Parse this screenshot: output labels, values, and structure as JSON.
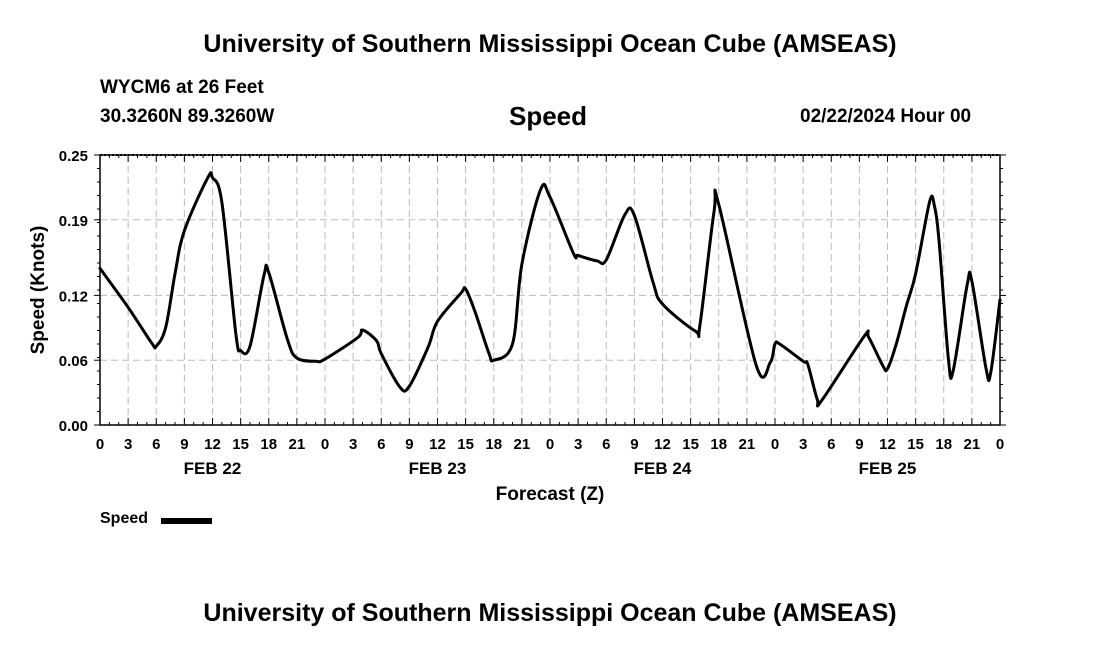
{
  "header": {
    "title": "University of Southern Mississippi Ocean Cube (AMSEAS)",
    "station": "WYCM6 at 26 Feet",
    "coords": "30.3260N  89.3260W",
    "chart_name": "Speed",
    "forecast_date": "02/22/2024 Hour 00"
  },
  "footer": {
    "title": "University of Southern Mississippi Ocean Cube (AMSEAS)"
  },
  "legend": {
    "label": "Speed"
  },
  "colors": {
    "line": "#000000",
    "grid": "#bbbbbb"
  },
  "chart_data": {
    "type": "line",
    "title": "Speed",
    "xlabel": "Forecast (Z)",
    "ylabel": "Speed (Knots)",
    "xlim": [
      0,
      96
    ],
    "ylim": [
      0,
      0.25
    ],
    "y_ticks": [
      0.0,
      0.06,
      0.12,
      0.19,
      0.25
    ],
    "y_tick_labels": [
      "0.00",
      "0.06",
      "0.12",
      "0.19",
      "0.25"
    ],
    "x_ticks": [
      0,
      3,
      6,
      9,
      12,
      15,
      18,
      21,
      24,
      27,
      30,
      33,
      36,
      39,
      42,
      45,
      48,
      51,
      54,
      57,
      60,
      63,
      66,
      69,
      72,
      75,
      78,
      81,
      84,
      87,
      90,
      93,
      96
    ],
    "x_tick_labels": [
      "0",
      "3",
      "6",
      "9",
      "12",
      "15",
      "18",
      "21",
      "0",
      "3",
      "6",
      "9",
      "12",
      "15",
      "18",
      "21",
      "0",
      "3",
      "6",
      "9",
      "12",
      "15",
      "18",
      "21",
      "0",
      "3",
      "6",
      "9",
      "12",
      "15",
      "18",
      "21",
      "0"
    ],
    "day_labels": [
      {
        "label": "FEB 22",
        "hour": 12
      },
      {
        "label": "FEB 23",
        "hour": 36
      },
      {
        "label": "FEB 24",
        "hour": 60
      },
      {
        "label": "FEB 25",
        "hour": 84
      }
    ],
    "grid": true,
    "series": [
      {
        "name": "Speed",
        "x": [
          0,
          3,
          5.5,
          6,
          7,
          8,
          9,
          11.5,
          12,
          13,
          14.5,
          15,
          16,
          17.5,
          18,
          20,
          21,
          23,
          24,
          27.5,
          28,
          29.5,
          30,
          32,
          33,
          35,
          36,
          38.5,
          39,
          40,
          41.5,
          42,
          44,
          45,
          47,
          48,
          50.5,
          51,
          53,
          54,
          56,
          57,
          59,
          60,
          63.5,
          64,
          65.5,
          66,
          70,
          71.5,
          72,
          72.5,
          75,
          75.5,
          76.5,
          77,
          81.5,
          82,
          83.5,
          84,
          85,
          86,
          87,
          88.5,
          89,
          89.5,
          90.5,
          91,
          92.5,
          93,
          94.5,
          95,
          96
        ],
        "y": [
          0.145,
          0.109,
          0.076,
          0.073,
          0.09,
          0.14,
          0.18,
          0.229,
          0.229,
          0.206,
          0.084,
          0.069,
          0.073,
          0.139,
          0.141,
          0.079,
          0.062,
          0.059,
          0.061,
          0.081,
          0.088,
          0.078,
          0.066,
          0.035,
          0.036,
          0.072,
          0.096,
          0.122,
          0.126,
          0.105,
          0.066,
          0.06,
          0.075,
          0.149,
          0.218,
          0.211,
          0.159,
          0.157,
          0.152,
          0.153,
          0.195,
          0.194,
          0.132,
          0.112,
          0.087,
          0.093,
          0.198,
          0.204,
          0.055,
          0.058,
          0.075,
          0.075,
          0.059,
          0.056,
          0.024,
          0.023,
          0.082,
          0.081,
          0.055,
          0.052,
          0.077,
          0.11,
          0.14,
          0.207,
          0.203,
          0.17,
          0.061,
          0.05,
          0.13,
          0.133,
          0.053,
          0.048,
          0.116
        ]
      }
    ]
  }
}
